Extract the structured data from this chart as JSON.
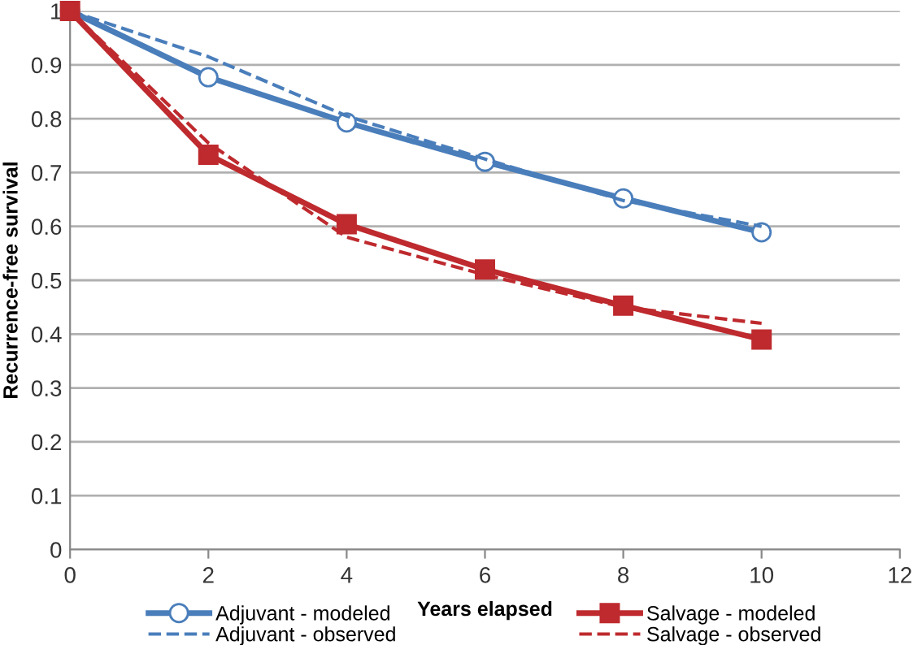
{
  "chart_data": {
    "type": "line",
    "xlabel": "Years elapsed",
    "ylabel": "Recurrence-free survival",
    "x": [
      0,
      2,
      4,
      6,
      8,
      10
    ],
    "series": [
      {
        "name": "Adjuvant - modeled",
        "color": "#4a7ebb",
        "marker": "circle",
        "line_style": "solid",
        "values": [
          1.0,
          0.877,
          0.793,
          0.72,
          0.652,
          0.589
        ]
      },
      {
        "name": "Adjuvant - observed",
        "color": "#4a7ebb",
        "marker": "none",
        "line_style": "dashed",
        "values": [
          1.0,
          0.915,
          0.805,
          0.725,
          0.648,
          0.6
        ]
      },
      {
        "name": "Salvage - modeled",
        "color": "#be2a2e",
        "marker": "square",
        "line_style": "solid",
        "values": [
          1.0,
          0.733,
          0.604,
          0.52,
          0.453,
          0.39
        ]
      },
      {
        "name": "Salvage - observed",
        "color": "#be2a2e",
        "marker": "none",
        "line_style": "dashed",
        "values": [
          1.0,
          0.755,
          0.58,
          0.51,
          0.45,
          0.42
        ]
      }
    ],
    "xlim": [
      0,
      12
    ],
    "xticks": [
      0,
      2,
      4,
      6,
      8,
      10,
      12
    ],
    "ylim": [
      0,
      1
    ],
    "yticks": [
      0,
      0.1,
      0.2,
      0.3,
      0.4,
      0.5,
      0.6,
      0.7,
      0.8,
      0.9,
      1
    ],
    "grid": "y",
    "legend": "bottom"
  }
}
